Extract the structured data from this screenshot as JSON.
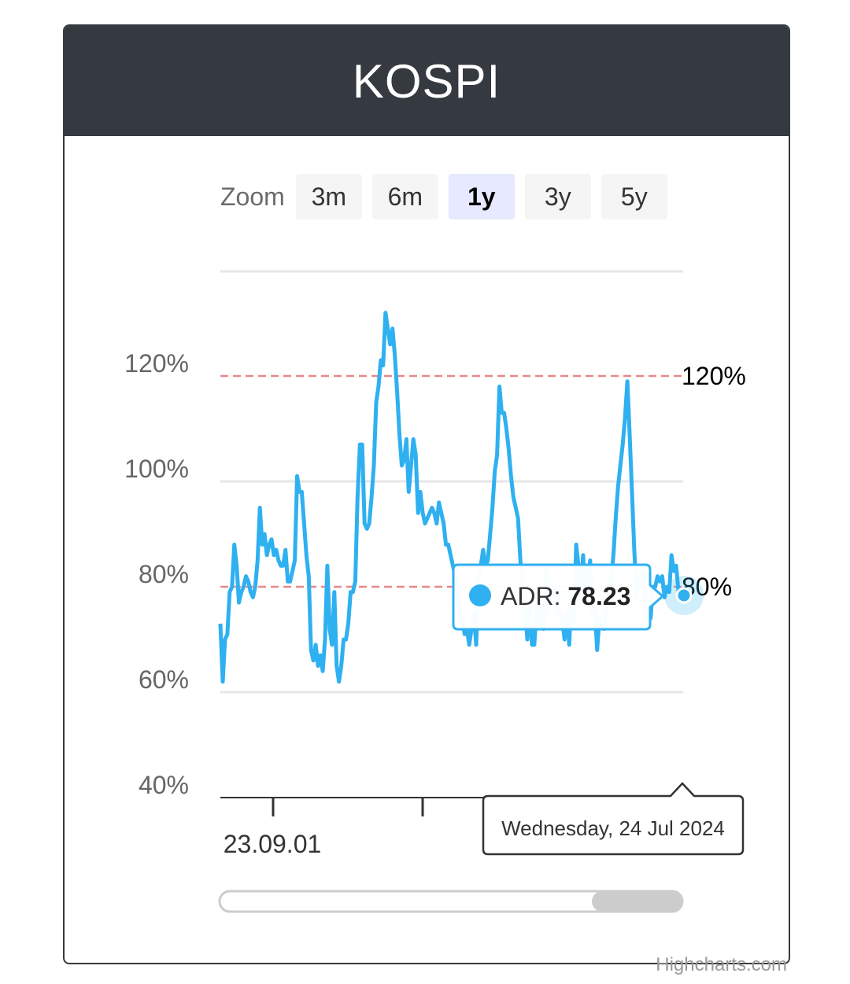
{
  "title": "KOSPI",
  "zoom": {
    "label": "Zoom",
    "buttons": [
      "3m",
      "6m",
      "1y",
      "3y",
      "5y"
    ],
    "active": "1y"
  },
  "colors": {
    "header_bg": "#343a40",
    "series": "#2fb0f0",
    "plotline": "#e88888",
    "grid": "#e6e6e6"
  },
  "chart_data": {
    "type": "line",
    "series": [
      {
        "name": "ADR",
        "values": [
          73,
          62,
          70,
          71,
          79,
          80,
          88,
          84,
          77,
          79,
          80,
          82,
          81,
          79,
          78,
          80,
          85,
          95,
          88,
          90,
          86,
          88,
          89,
          86,
          87,
          85,
          84,
          84,
          87,
          81,
          81,
          83,
          85,
          101,
          98,
          98,
          92,
          86,
          82,
          68,
          66,
          69,
          65,
          67,
          64,
          70,
          84,
          72,
          69,
          79,
          65,
          62,
          65,
          70,
          70,
          73,
          79,
          79,
          81,
          97,
          107,
          107,
          92,
          91,
          92,
          97,
          103,
          115,
          118,
          123,
          122,
          132,
          129,
          126,
          129,
          124,
          117,
          109,
          103,
          104,
          108,
          98,
          103,
          108,
          105,
          94,
          98,
          94,
          92,
          93,
          94,
          95,
          94,
          92,
          96,
          94,
          92,
          88,
          88,
          86,
          84,
          82,
          79,
          74,
          74,
          71,
          72,
          69,
          72,
          75,
          69,
          82,
          84,
          87,
          84,
          85,
          90,
          95,
          102,
          105,
          118,
          113,
          113,
          110,
          106,
          101,
          97,
          95,
          93,
          85,
          80,
          76,
          70,
          76,
          69,
          69,
          76,
          79,
          73,
          72,
          83,
          76,
          78,
          80,
          79,
          75,
          75,
          74,
          70,
          75,
          69,
          79,
          73,
          88,
          84,
          79,
          86,
          78,
          80,
          85,
          75,
          76,
          68,
          74,
          73,
          72,
          77,
          79,
          81,
          86,
          93,
          99,
          103,
          107,
          112,
          119,
          109,
          98,
          87,
          78,
          82,
          80,
          83,
          73,
          77,
          74,
          80,
          80,
          82,
          81,
          82,
          78,
          80,
          79,
          86,
          83,
          84,
          79,
          78,
          78
        ]
      }
    ],
    "x_tick_label": "23.09.01",
    "y_ticks": [
      "40%",
      "60%",
      "80%",
      "100%",
      "120%"
    ],
    "ylim": [
      40,
      140
    ],
    "plot_lines": [
      {
        "label": "120%",
        "value": 120
      },
      {
        "label": "80%",
        "value": 80
      }
    ],
    "grid": true,
    "tooltip": {
      "series_label": "ADR: ",
      "value": "78.23",
      "date": "Wednesday, 24 Jul 2024"
    },
    "credits": "Highcharts.com"
  }
}
